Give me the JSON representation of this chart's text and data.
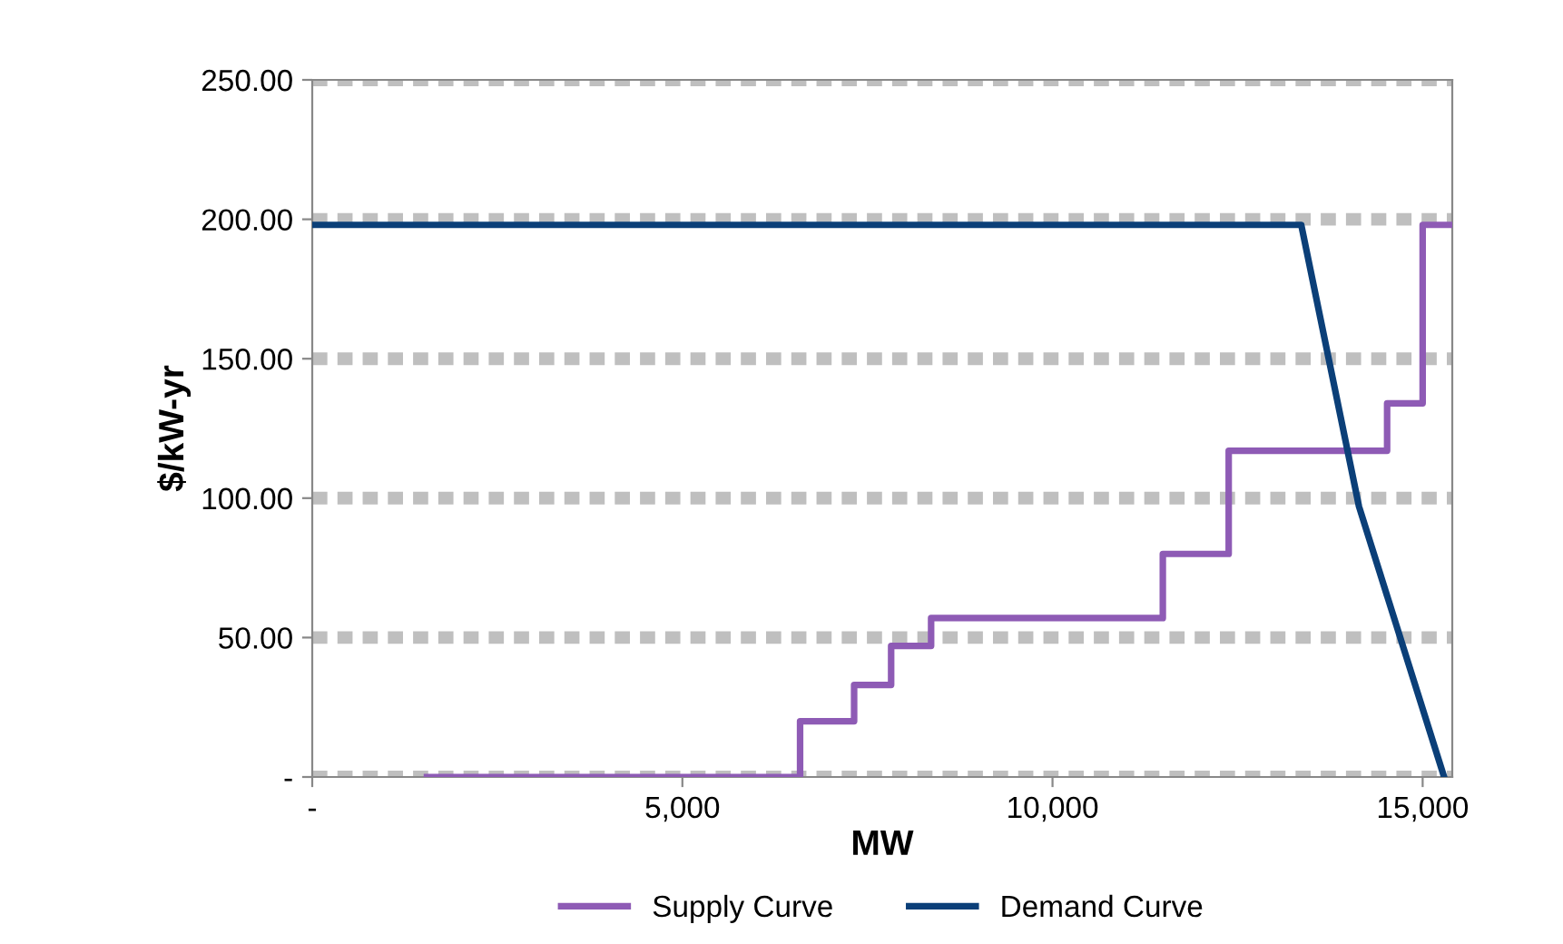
{
  "chart_data": {
    "type": "line",
    "xlabel": "MW",
    "ylabel": "$/kW-yr",
    "series": [
      {
        "name": "Supply Curve",
        "type": "step",
        "color": "#8e5bb5",
        "x": [
          1550,
          6590,
          7320,
          7820,
          8360,
          11490,
          12380,
          14520,
          15000,
          15400
        ],
        "values": [
          0,
          20,
          33,
          47,
          57,
          80,
          117,
          134,
          198,
          198
        ]
      },
      {
        "name": "Demand Curve",
        "color": "#0b3f78",
        "x": [
          0,
          13360,
          14140,
          15290
        ],
        "values": [
          198,
          198,
          97,
          0
        ]
      }
    ],
    "xlim": [
      0,
      15400
    ],
    "xticks": [
      {
        "value": 0,
        "label": "-"
      },
      {
        "value": 5000,
        "label": "5,000"
      },
      {
        "value": 10000,
        "label": "10,000"
      },
      {
        "value": 15000,
        "label": "15,000"
      }
    ],
    "ylim": [
      0,
      250
    ],
    "yticks": [
      {
        "value": 0,
        "label": "-"
      },
      {
        "value": 50,
        "label": "50.00"
      },
      {
        "value": 100,
        "label": "100.00"
      },
      {
        "value": 150,
        "label": "150.00"
      },
      {
        "value": 200,
        "label": "200.00"
      },
      {
        "value": 250,
        "label": "250.00"
      }
    ],
    "grid": "y",
    "legend": "bottom",
    "line_style": "solid",
    "marker": "none"
  }
}
